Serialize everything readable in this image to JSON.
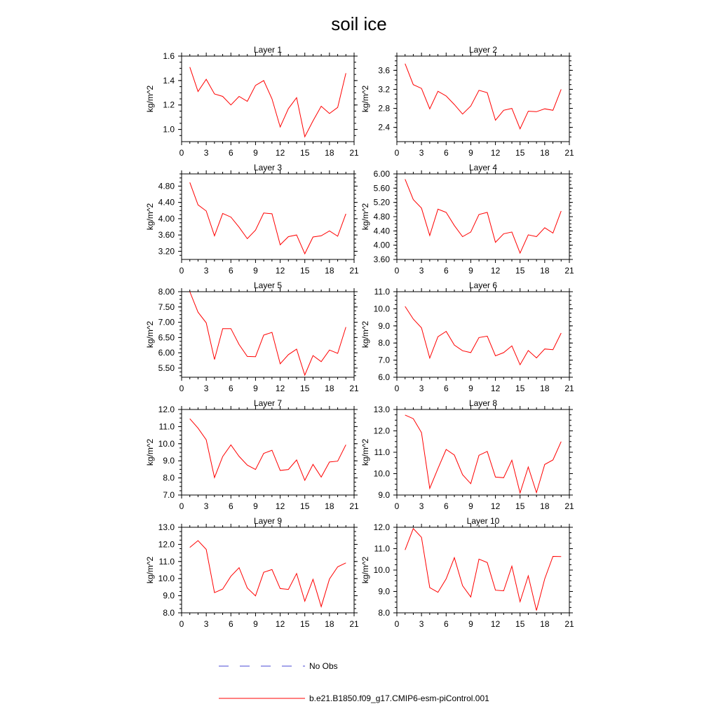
{
  "figure": {
    "title": "soil ice",
    "legend": {
      "obs_label": "No Obs",
      "model_label": "b.e21.B1850.f09_g17.CMIP6-esm-piControl.001",
      "obs_color": "#4a4ad6",
      "model_color": "#ff0000"
    }
  },
  "chart_data": [
    {
      "type": "line",
      "title": "Layer 1",
      "ylabel": "kg/m^2",
      "xlim": [
        0,
        21
      ],
      "ylim": [
        0.9,
        1.6
      ],
      "xticks": [
        "0",
        "3",
        "6",
        "9",
        "12",
        "15",
        "18",
        "21"
      ],
      "yticks": [
        "1.0",
        "1.2",
        "1.4",
        "1.6"
      ],
      "x": [
        1,
        2,
        3,
        4,
        5,
        6,
        7,
        8,
        9,
        10,
        11,
        12,
        13,
        14,
        15,
        16,
        17,
        18,
        19,
        20
      ],
      "series": [
        {
          "name": "b.e21.B1850.f09_g17.CMIP6-esm-piControl.001",
          "values": [
            1.51,
            1.31,
            1.41,
            1.29,
            1.27,
            1.2,
            1.27,
            1.23,
            1.36,
            1.4,
            1.25,
            1.02,
            1.17,
            1.26,
            0.94,
            1.07,
            1.19,
            1.13,
            1.18,
            1.46
          ]
        }
      ]
    },
    {
      "type": "line",
      "title": "Layer 2",
      "ylabel": "kg/m^2",
      "xlim": [
        0,
        21
      ],
      "ylim": [
        2.1,
        3.9
      ],
      "xticks": [
        "0",
        "3",
        "6",
        "9",
        "12",
        "15",
        "18",
        "21"
      ],
      "yticks": [
        "2.4",
        "2.8",
        "3.2",
        "3.6"
      ],
      "x": [
        1,
        2,
        3,
        4,
        5,
        6,
        7,
        8,
        9,
        10,
        11,
        12,
        13,
        14,
        15,
        16,
        17,
        18,
        19,
        20
      ],
      "series": [
        {
          "name": "b.e21.B1850.f09_g17.CMIP6-esm-piControl.001",
          "values": [
            3.74,
            3.3,
            3.22,
            2.79,
            3.16,
            3.06,
            2.88,
            2.68,
            2.85,
            3.18,
            3.13,
            2.55,
            2.76,
            2.8,
            2.37,
            2.74,
            2.73,
            2.79,
            2.76,
            3.2
          ]
        }
      ]
    },
    {
      "type": "line",
      "title": "Layer 3",
      "ylabel": "kg/m^2",
      "xlim": [
        0,
        21
      ],
      "ylim": [
        3.0,
        5.1
      ],
      "xticks": [
        "0",
        "3",
        "6",
        "9",
        "12",
        "15",
        "18",
        "21"
      ],
      "yticks": [
        "3.20",
        "3.60",
        "4.00",
        "4.40",
        "4.80"
      ],
      "x": [
        1,
        2,
        3,
        4,
        5,
        6,
        7,
        8,
        9,
        10,
        11,
        12,
        13,
        14,
        15,
        16,
        17,
        18,
        19,
        20
      ],
      "series": [
        {
          "name": "b.e21.B1850.f09_g17.CMIP6-esm-piControl.001",
          "values": [
            4.89,
            4.34,
            4.19,
            3.58,
            4.13,
            4.04,
            3.79,
            3.51,
            3.72,
            4.14,
            4.12,
            3.36,
            3.56,
            3.6,
            3.14,
            3.55,
            3.58,
            3.7,
            3.57,
            4.12
          ]
        }
      ]
    },
    {
      "type": "line",
      "title": "Layer 4",
      "ylabel": "kg/m^2",
      "xlim": [
        0,
        21
      ],
      "ylim": [
        3.6,
        6.0
      ],
      "xticks": [
        "0",
        "3",
        "6",
        "9",
        "12",
        "15",
        "18",
        "21"
      ],
      "yticks": [
        "3.60",
        "4.00",
        "4.40",
        "4.80",
        "5.20",
        "5.60",
        "6.00"
      ],
      "x": [
        1,
        2,
        3,
        4,
        5,
        6,
        7,
        8,
        9,
        10,
        11,
        12,
        13,
        14,
        15,
        16,
        17,
        18,
        19,
        20
      ],
      "series": [
        {
          "name": "b.e21.B1850.f09_g17.CMIP6-esm-piControl.001",
          "values": [
            5.85,
            5.28,
            5.04,
            4.27,
            5.01,
            4.92,
            4.55,
            4.24,
            4.37,
            4.86,
            4.92,
            4.08,
            4.32,
            4.37,
            3.78,
            4.29,
            4.24,
            4.49,
            4.34,
            4.96
          ]
        }
      ]
    },
    {
      "type": "line",
      "title": "Layer 5",
      "ylabel": "kg/m^2",
      "xlim": [
        0,
        21
      ],
      "ylim": [
        5.2,
        8.0
      ],
      "xticks": [
        "0",
        "3",
        "6",
        "9",
        "12",
        "15",
        "18",
        "21"
      ],
      "yticks": [
        "5.50",
        "6.00",
        "6.50",
        "7.00",
        "7.50",
        "8.00"
      ],
      "x": [
        1,
        2,
        3,
        4,
        5,
        6,
        7,
        8,
        9,
        10,
        11,
        12,
        13,
        14,
        15,
        16,
        17,
        18,
        19,
        20
      ],
      "series": [
        {
          "name": "b.e21.B1850.f09_g17.CMIP6-esm-piControl.001",
          "values": [
            8.0,
            7.33,
            6.98,
            5.78,
            6.79,
            6.79,
            6.27,
            5.88,
            5.87,
            6.58,
            6.67,
            5.64,
            5.94,
            6.12,
            5.27,
            5.91,
            5.71,
            6.09,
            5.98,
            6.84
          ]
        }
      ]
    },
    {
      "type": "line",
      "title": "Layer 6",
      "ylabel": "kg/m^2",
      "xlim": [
        0,
        21
      ],
      "ylim": [
        6.0,
        11.0
      ],
      "xticks": [
        "0",
        "3",
        "6",
        "9",
        "12",
        "15",
        "18",
        "21"
      ],
      "yticks": [
        "6.0",
        "7.0",
        "8.0",
        "9.0",
        "10.0",
        "11.0"
      ],
      "x": [
        1,
        2,
        3,
        4,
        5,
        6,
        7,
        8,
        9,
        10,
        11,
        12,
        13,
        14,
        15,
        16,
        17,
        18,
        19,
        20
      ],
      "series": [
        {
          "name": "b.e21.B1850.f09_g17.CMIP6-esm-piControl.001",
          "values": [
            10.14,
            9.4,
            8.89,
            7.12,
            8.37,
            8.68,
            7.88,
            7.55,
            7.44,
            8.32,
            8.4,
            7.25,
            7.44,
            7.83,
            6.73,
            7.56,
            7.13,
            7.65,
            7.61,
            8.58
          ]
        }
      ]
    },
    {
      "type": "line",
      "title": "Layer 7",
      "ylabel": "kg/m^2",
      "xlim": [
        0,
        21
      ],
      "ylim": [
        7.0,
        12.0
      ],
      "xticks": [
        "0",
        "3",
        "6",
        "9",
        "12",
        "15",
        "18",
        "21"
      ],
      "yticks": [
        "7.0",
        "8.0",
        "9.0",
        "10.0",
        "11.0",
        "12.0"
      ],
      "x": [
        1,
        2,
        3,
        4,
        5,
        6,
        7,
        8,
        9,
        10,
        11,
        12,
        13,
        14,
        15,
        16,
        17,
        18,
        19,
        20
      ],
      "series": [
        {
          "name": "b.e21.B1850.f09_g17.CMIP6-esm-piControl.001",
          "values": [
            11.46,
            10.91,
            10.23,
            8.02,
            9.25,
            9.93,
            9.26,
            8.75,
            8.49,
            9.43,
            9.62,
            8.44,
            8.49,
            9.05,
            7.86,
            8.79,
            8.05,
            8.93,
            8.98,
            9.94
          ]
        }
      ]
    },
    {
      "type": "line",
      "title": "Layer 8",
      "ylabel": "kg/m^2",
      "xlim": [
        0,
        21
      ],
      "ylim": [
        9.0,
        13.0
      ],
      "xticks": [
        "0",
        "3",
        "6",
        "9",
        "12",
        "15",
        "18",
        "21"
      ],
      "yticks": [
        "9.0",
        "10.0",
        "11.0",
        "12.0",
        "13.0"
      ],
      "x": [
        1,
        2,
        3,
        4,
        5,
        6,
        7,
        8,
        9,
        10,
        11,
        12,
        13,
        14,
        15,
        16,
        17,
        18,
        19,
        20
      ],
      "series": [
        {
          "name": "b.e21.B1850.f09_g17.CMIP6-esm-piControl.001",
          "values": [
            12.74,
            12.57,
            11.92,
            9.31,
            10.24,
            11.13,
            10.87,
            9.95,
            9.53,
            10.86,
            11.04,
            9.84,
            9.81,
            10.63,
            9.1,
            10.31,
            9.11,
            10.43,
            10.64,
            11.5
          ]
        }
      ]
    },
    {
      "type": "line",
      "title": "Layer 9",
      "ylabel": "kg/m^2",
      "xlim": [
        0,
        21
      ],
      "ylim": [
        8.0,
        13.0
      ],
      "xticks": [
        "0",
        "3",
        "6",
        "9",
        "12",
        "15",
        "18",
        "21"
      ],
      "yticks": [
        "8.0",
        "9.0",
        "10.0",
        "11.0",
        "12.0",
        "13.0"
      ],
      "x": [
        1,
        2,
        3,
        4,
        5,
        6,
        7,
        8,
        9,
        10,
        11,
        12,
        13,
        14,
        15,
        16,
        17,
        18,
        19,
        20
      ],
      "series": [
        {
          "name": "b.e21.B1850.f09_g17.CMIP6-esm-piControl.001",
          "values": [
            11.82,
            12.22,
            11.71,
            9.18,
            9.39,
            10.14,
            10.64,
            9.45,
            8.99,
            10.37,
            10.53,
            9.42,
            9.37,
            10.3,
            8.68,
            9.96,
            8.36,
            9.98,
            10.69,
            10.92
          ]
        }
      ]
    },
    {
      "type": "line",
      "title": "Layer 10",
      "ylabel": "kg/m^2",
      "xlim": [
        0,
        21
      ],
      "ylim": [
        8.0,
        12.0
      ],
      "xticks": [
        "0",
        "3",
        "6",
        "9",
        "12",
        "15",
        "18",
        "21"
      ],
      "yticks": [
        "8.0",
        "9.0",
        "10.0",
        "11.0",
        "12.0"
      ],
      "x": [
        1,
        2,
        3,
        4,
        5,
        6,
        7,
        8,
        9,
        10,
        11,
        12,
        13,
        14,
        15,
        16,
        17,
        18,
        19,
        20
      ],
      "series": [
        {
          "name": "b.e21.B1850.f09_g17.CMIP6-esm-piControl.001",
          "values": [
            10.94,
            11.94,
            11.53,
            9.18,
            8.96,
            9.59,
            10.58,
            9.27,
            8.74,
            10.51,
            10.35,
            9.06,
            9.03,
            10.18,
            8.52,
            9.73,
            8.11,
            9.59,
            10.64,
            10.63
          ]
        }
      ]
    }
  ]
}
